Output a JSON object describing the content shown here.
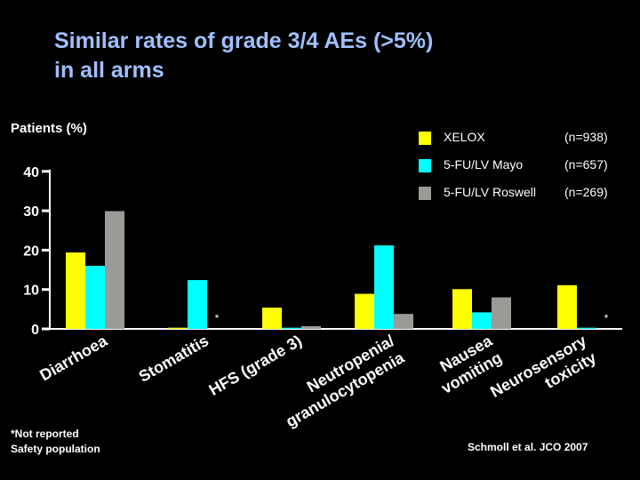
{
  "title_lines": [
    "Similar rates of grade 3/4 AEs (>5%)",
    "in all arms"
  ],
  "footnote_lines": [
    "*Not reported",
    "Safety population"
  ],
  "citation": "Schmoll et al. JCO 2007",
  "colors": {
    "background": "#000000",
    "title": "#9fc0ff",
    "xelox": "#ffff00",
    "mayo": "#00ffff",
    "roswell": "#9a9a96",
    "axis": "#ffffff"
  },
  "chart_data": {
    "type": "bar",
    "ylabel": "Patients (%)",
    "ylim": [
      0,
      40
    ],
    "yticks": [
      0,
      10,
      20,
      30,
      40
    ],
    "series_n": [
      "(n=938)",
      "(n=657)",
      "(n=269)"
    ],
    "categories": [
      {
        "lines": [
          "Diarrhoea"
        ]
      },
      {
        "lines": [
          "Stomatitis"
        ]
      },
      {
        "lines": [
          "HFS (grade 3)"
        ]
      },
      {
        "lines": [
          "Neutropenia/",
          "granulocytopenia"
        ]
      },
      {
        "lines": [
          "Nausea",
          "vomiting"
        ]
      },
      {
        "lines": [
          "Neurosensory",
          "toxicity"
        ]
      }
    ],
    "series": [
      {
        "name": "XELOX",
        "values": [
          19.4,
          0.3,
          5.4,
          8.9,
          10.1,
          11.1
        ]
      },
      {
        "name": "5-FU/LV Mayo",
        "values": [
          16.0,
          12.4,
          0.3,
          21.2,
          4.2,
          0.3
        ]
      },
      {
        "name": "5-FU/LV Roswell",
        "values": [
          29.9,
          null,
          0.7,
          3.8,
          8.0,
          null
        ]
      }
    ],
    "annotations": [
      {
        "category": 1,
        "series": 2,
        "text": "*"
      },
      {
        "category": 5,
        "series": 2,
        "text": "*"
      }
    ]
  }
}
